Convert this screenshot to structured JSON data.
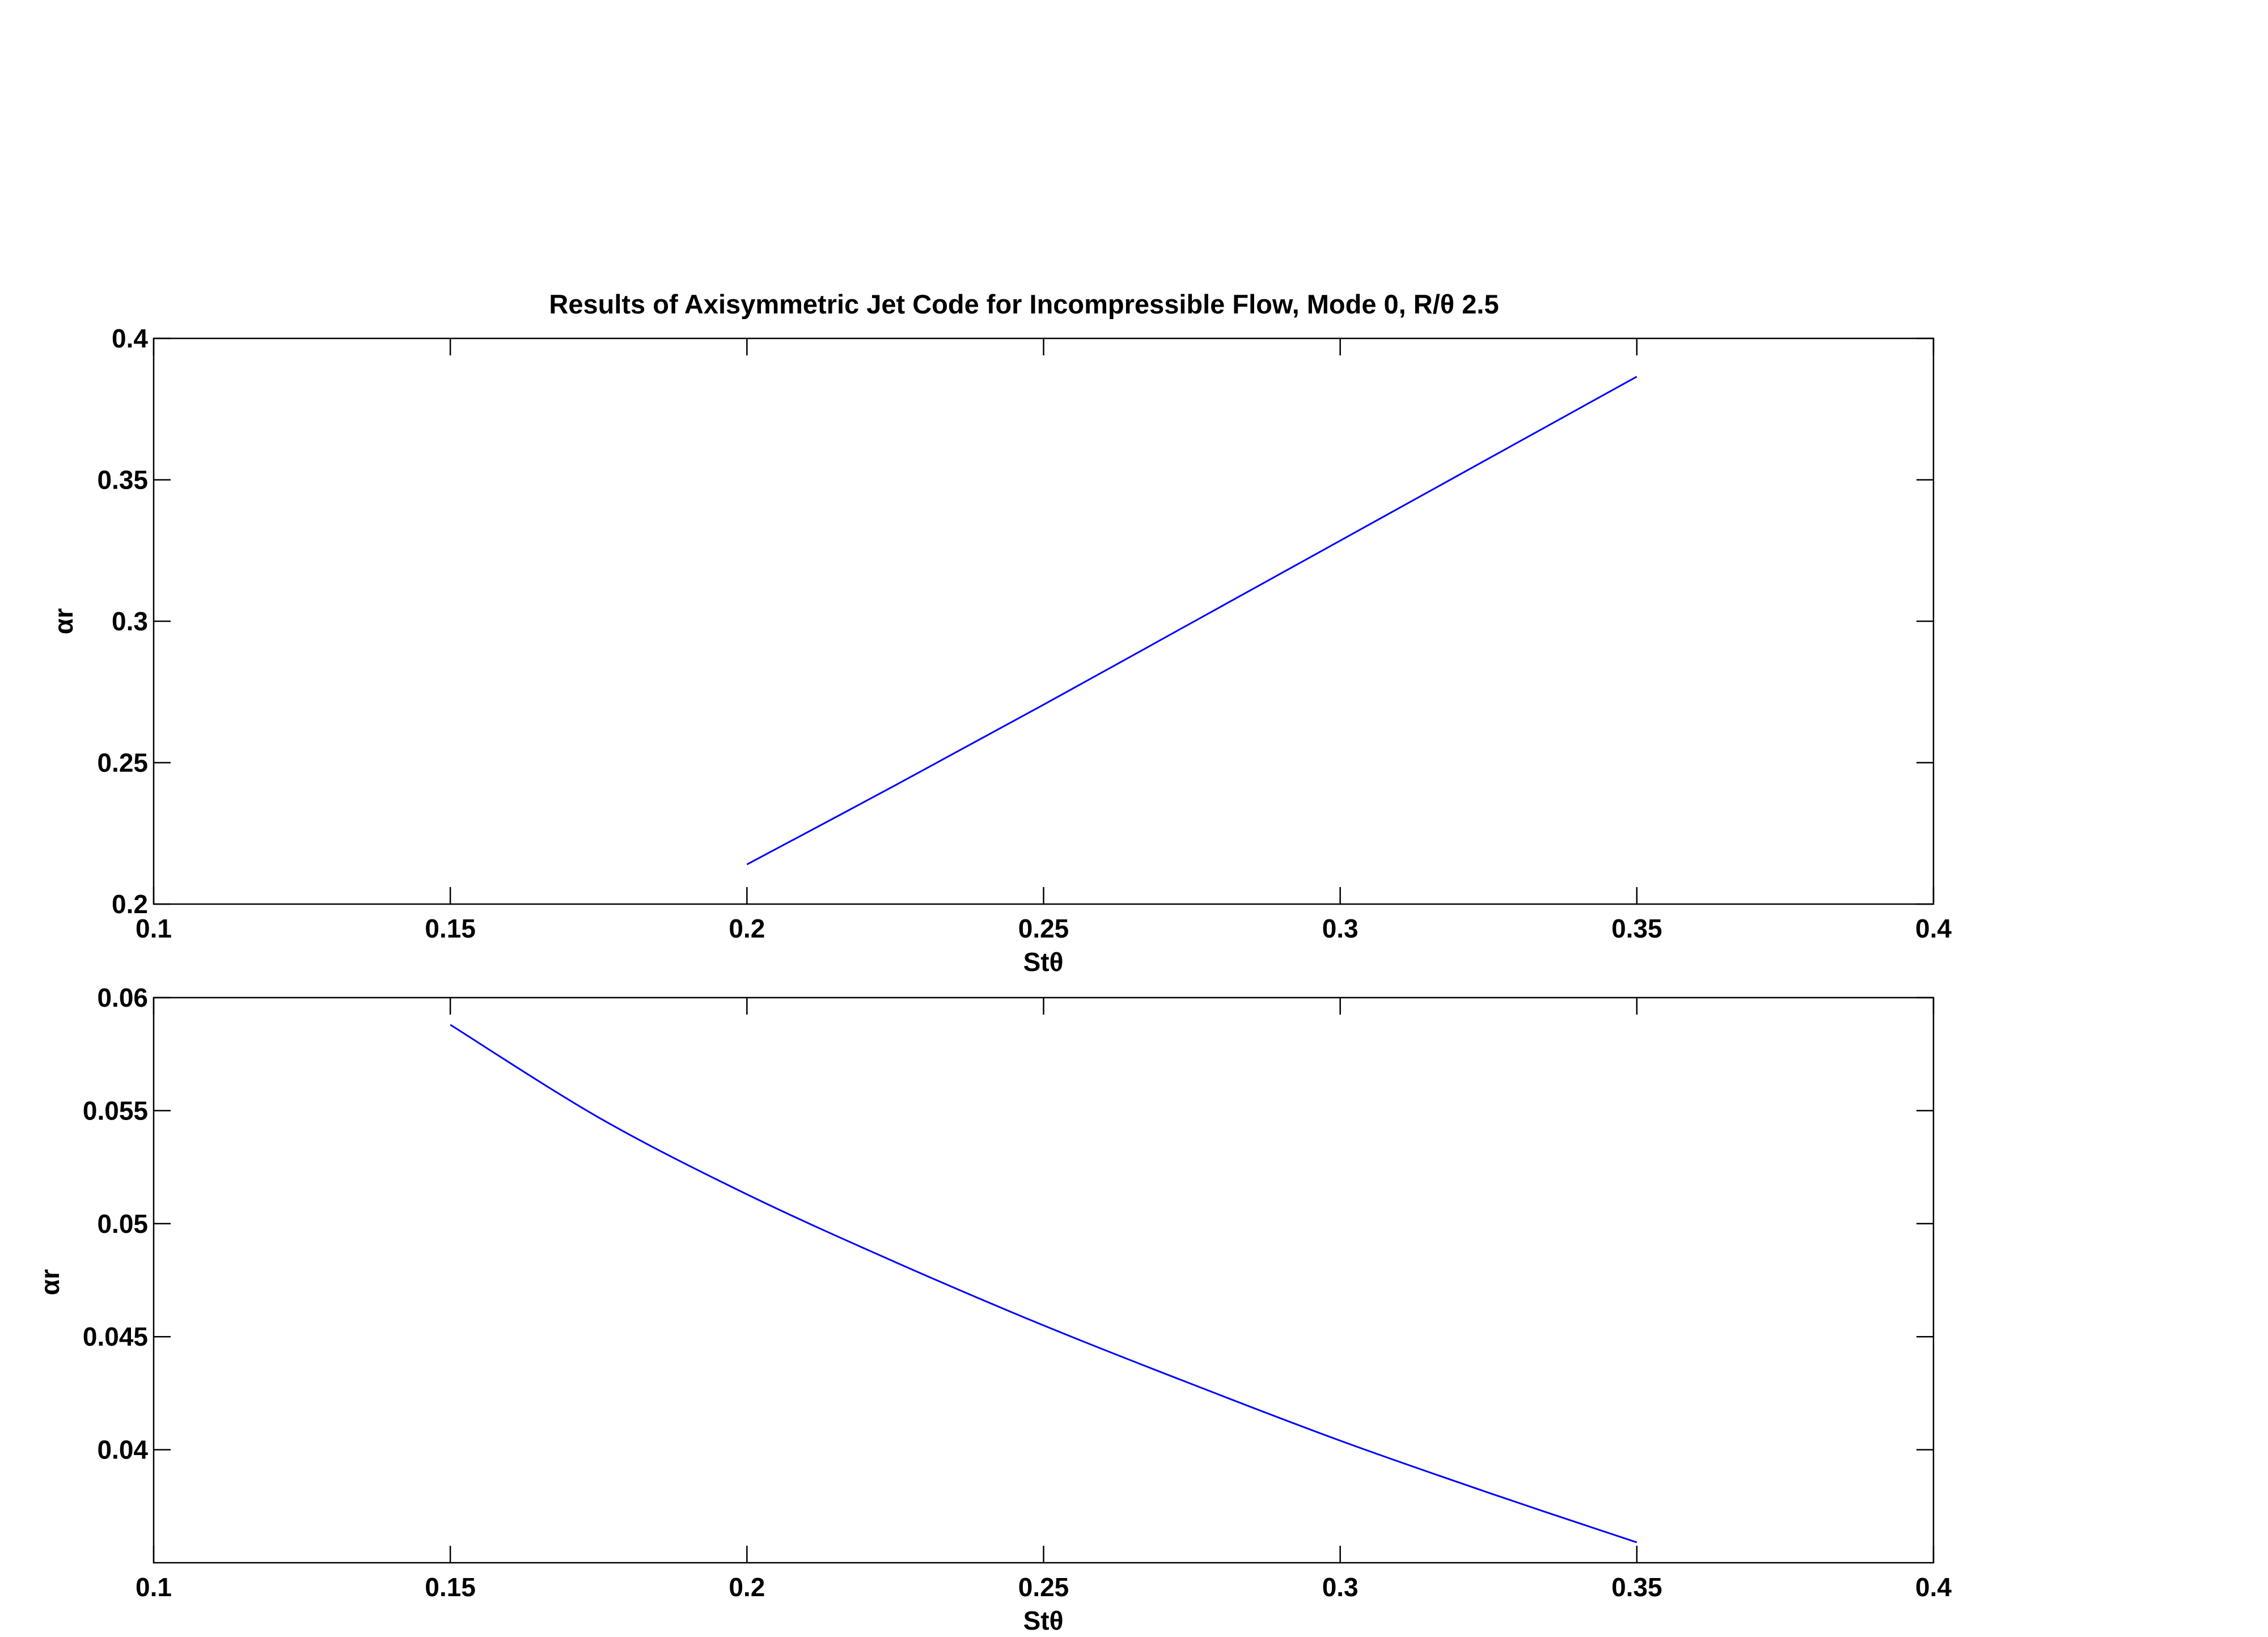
{
  "figure": {
    "background": "#ffffff",
    "axes_color": "#000000",
    "line_color": "#0000ff"
  },
  "chart_data": [
    {
      "type": "line",
      "title": "Results of Axisymmetric Jet Code for Incompressible Flow, Mode 0, R/θ 2.5",
      "xlabel": "Stθ",
      "ylabel": "αr",
      "xlim": [
        0.1,
        0.4
      ],
      "ylim": [
        0.2,
        0.4
      ],
      "xticks": [
        "0.1",
        "0.15",
        "0.2",
        "0.25",
        "0.3",
        "0.35",
        "0.4"
      ],
      "yticks": [
        "0.2",
        "0.25",
        "0.3",
        "0.35",
        "0.4"
      ],
      "grid": false,
      "series": [
        {
          "x": [
            0.2,
            0.225,
            0.25,
            0.275,
            0.3,
            0.325,
            0.35
          ],
          "y": [
            0.214,
            0.242,
            0.2705,
            0.2995,
            0.3285,
            0.3575,
            0.3865
          ]
        }
      ]
    },
    {
      "type": "line",
      "title": "",
      "xlabel": "Stθ",
      "ylabel": "αr",
      "xlim": [
        0.1,
        0.4
      ],
      "ylim": [
        0.035,
        0.06
      ],
      "xticks": [
        "0.1",
        "0.15",
        "0.2",
        "0.25",
        "0.3",
        "0.35",
        "0.4"
      ],
      "yticks": [
        "0.04",
        "0.045",
        "0.05",
        "0.055",
        "0.06"
      ],
      "grid": false,
      "series": [
        {
          "x": [
            0.15,
            0.175,
            0.2,
            0.225,
            0.25,
            0.275,
            0.3,
            0.325,
            0.35
          ],
          "y": [
            0.0588,
            0.0547,
            0.0513,
            0.0483,
            0.0455,
            0.0429,
            0.0404,
            0.0381,
            0.0359
          ]
        }
      ]
    }
  ]
}
